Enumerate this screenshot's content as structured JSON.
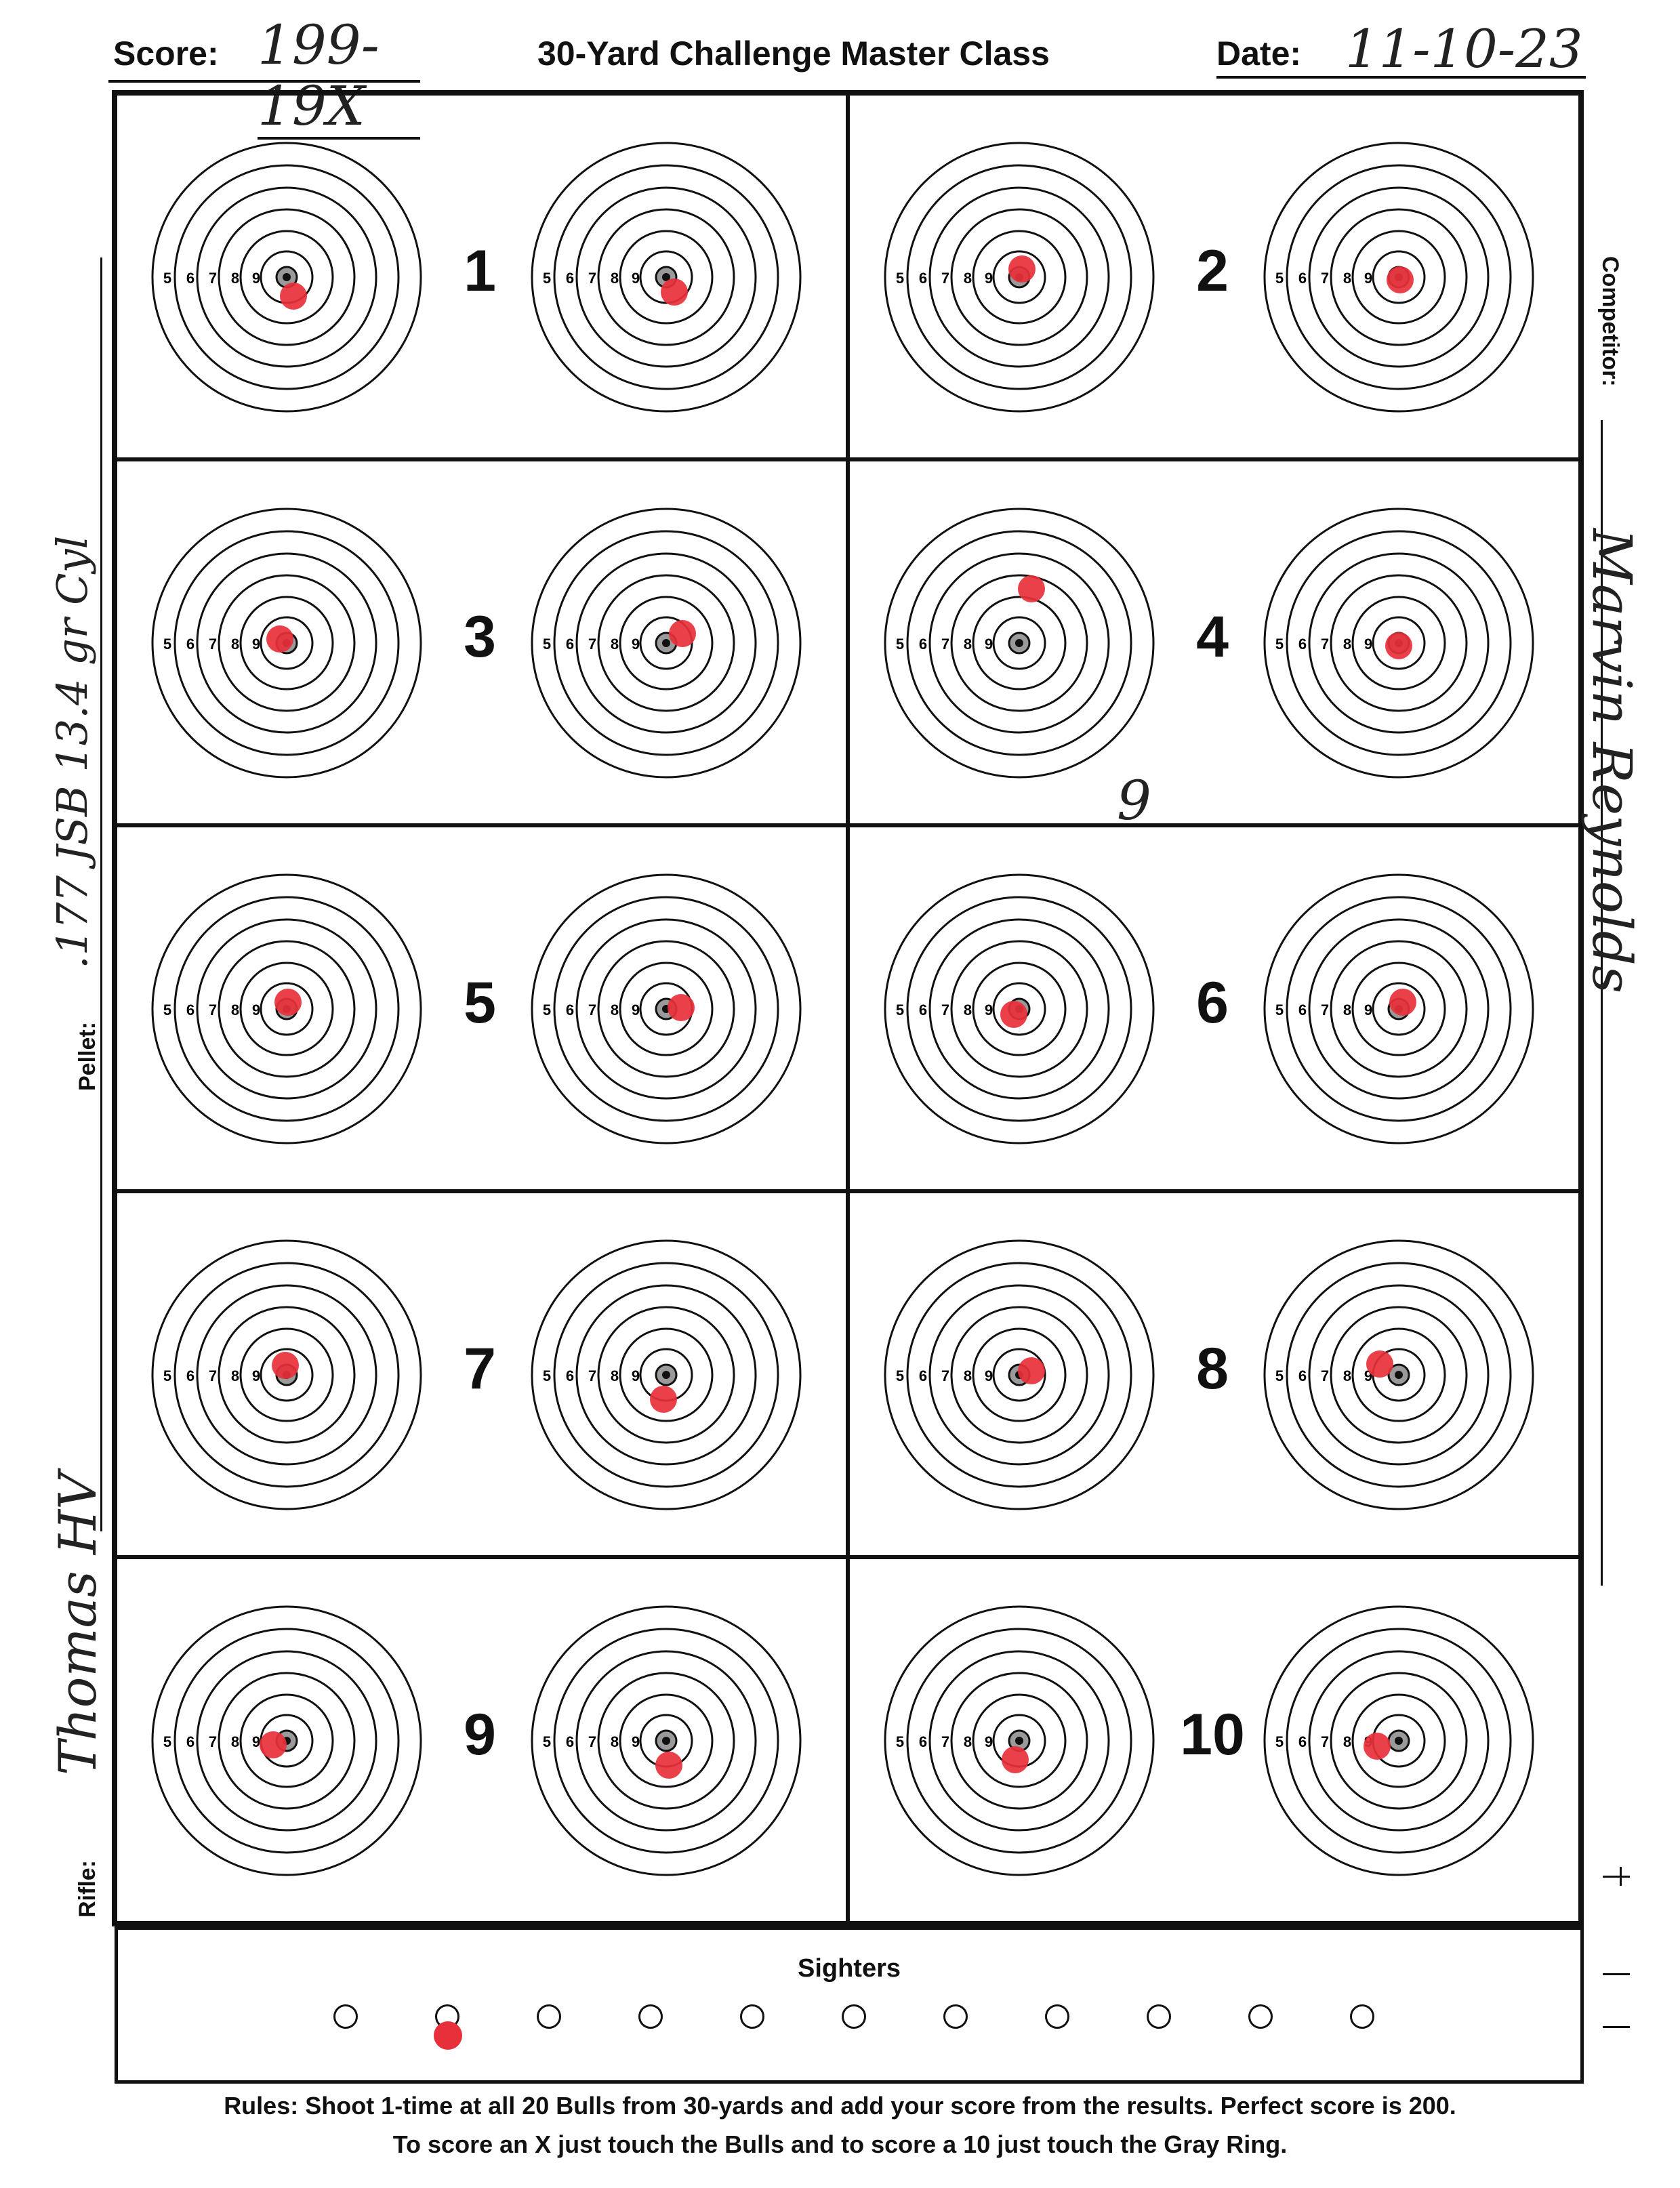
{
  "header": {
    "score_label": "Score:",
    "score_value": "199-19X",
    "title": "30-Yard Challenge Master Class",
    "date_label": "Date:",
    "date_value": "11-10-23"
  },
  "side_fields": {
    "competitor_label": "Competitor:",
    "competitor_value": "Marvin Reynolds",
    "pellet_label": "Pellet:",
    "pellet_value": ".177 JSB 13.4 gr Cyl",
    "rifle_label": "Rifle:",
    "rifle_value": "Thomas HV"
  },
  "ring_labels": [
    "5",
    "6",
    "7",
    "8",
    "9"
  ],
  "pairs": [
    {
      "number": "1"
    },
    {
      "number": "2"
    },
    {
      "number": "3"
    },
    {
      "number": "4"
    },
    {
      "number": "5"
    },
    {
      "number": "6"
    },
    {
      "number": "7"
    },
    {
      "number": "8"
    },
    {
      "number": "9"
    },
    {
      "number": "10"
    }
  ],
  "annotation": "9",
  "sighters": {
    "label": "Sighters",
    "count": 11,
    "shots": [
      2
    ]
  },
  "rules": {
    "line1": "Rules: Shoot 1-time at all 20 Bulls from 30-yards and add your score from the results. Perfect score is 200.",
    "line2": "To score an X just touch the Bulls and to score a 10 just touch the Gray Ring."
  },
  "colors": {
    "hit": "#e8303a",
    "ink": "#111111",
    "bull_gray": "#9a9a9a"
  },
  "hits": [
    {
      "dx": 0.05,
      "dy": 0.14
    },
    {
      "dx": 0.06,
      "dy": 0.11
    },
    {
      "dx": 0.02,
      "dy": -0.06
    },
    {
      "dx": 0.01,
      "dy": 0.02
    },
    {
      "dx": -0.05,
      "dy": -0.03
    },
    {
      "dx": 0.12,
      "dy": -0.07
    },
    {
      "dx": 0.09,
      "dy": -0.4
    },
    {
      "dx": 0.0,
      "dy": 0.02
    },
    {
      "dx": 0.01,
      "dy": -0.05
    },
    {
      "dx": 0.11,
      "dy": -0.01
    },
    {
      "dx": -0.04,
      "dy": 0.04
    },
    {
      "dx": 0.03,
      "dy": -0.05
    },
    {
      "dx": -0.01,
      "dy": -0.07
    },
    {
      "dx": -0.02,
      "dy": 0.18
    },
    {
      "dx": 0.09,
      "dy": -0.03
    },
    {
      "dx": -0.14,
      "dy": -0.08
    },
    {
      "dx": -0.1,
      "dy": 0.03
    },
    {
      "dx": 0.02,
      "dy": 0.18
    },
    {
      "dx": -0.03,
      "dy": 0.14
    },
    {
      "dx": -0.16,
      "dy": 0.04
    }
  ]
}
